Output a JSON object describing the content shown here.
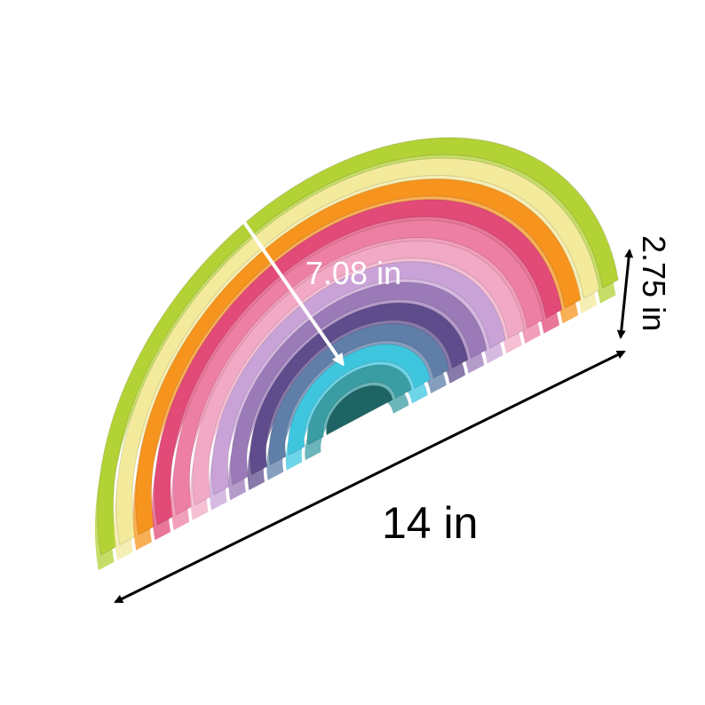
{
  "product": {
    "colors_outer_to_inner": [
      "#b3d235",
      "#f3ea9c",
      "#f7941e",
      "#e24a78",
      "#ee7fa4",
      "#f2a9c5",
      "#c9a3d8",
      "#9b7ab8",
      "#5f4c8c",
      "#5f7fa8",
      "#3ec6df",
      "#3a9da3",
      "#1f6464"
    ]
  },
  "dimensions": {
    "diagonal_label": "7.08 in",
    "length_label": "14 in",
    "height_label": "2.75 in"
  }
}
